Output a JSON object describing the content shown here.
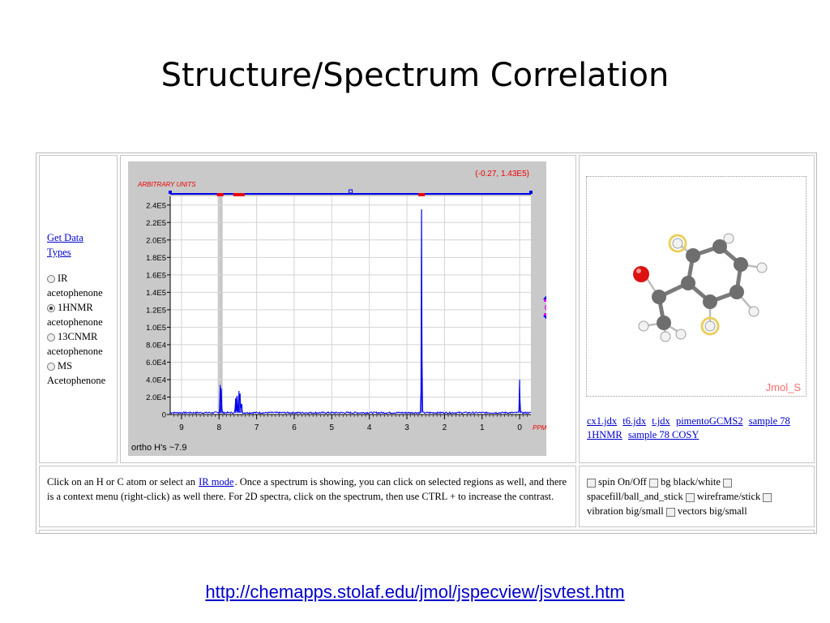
{
  "slide": {
    "title": "Structure/Spectrum Correlation",
    "url": "http://chemapps.stolaf.edu/jmol/jspecview/jsvtest.htm"
  },
  "left_panel": {
    "link_line1": "Get Data",
    "link_line2": "Types",
    "options": [
      {
        "name": "IR",
        "compound": "acetophenone",
        "checked": false
      },
      {
        "name": "1HNMR",
        "compound": "acetophenone",
        "checked": true
      },
      {
        "name": "13CNMR",
        "compound": "acetophenone",
        "checked": false
      },
      {
        "name": "MS",
        "compound": "Acetophenone",
        "checked": false
      }
    ]
  },
  "spectrum": {
    "cursor_readout": "(-0.27, 1.43E5)",
    "units_label": "ARBITRARY UNITS",
    "x_unit_label": "PPM",
    "annotation": "ortho H's ~7.9",
    "colors": {
      "background": "#c9c9c9",
      "line": "#0000ee",
      "readout": "#ee0000",
      "highlight": "#ee0000"
    }
  },
  "chart_data": {
    "type": "line",
    "ylabel": "ARBITRARY UNITS",
    "xlabel": "PPM",
    "xlim": [
      9.3,
      -0.3
    ],
    "ylim": [
      0,
      250000
    ],
    "x_ticks": [
      "9",
      "8",
      "7",
      "6",
      "5",
      "4",
      "3",
      "2",
      "1",
      "0"
    ],
    "y_ticks": [
      "0",
      "2.0E4",
      "4.0E4",
      "6.0E4",
      "8.0E4",
      "1.0E5",
      "1.2E5",
      "1.4E5",
      "1.6E5",
      "1.8E5",
      "2.0E5",
      "2.2E5",
      "2.4E5"
    ],
    "highlight_ppm": 7.97,
    "peaks": [
      {
        "ppm": 7.97,
        "height": 33000
      },
      {
        "ppm": 7.94,
        "height": 28000
      },
      {
        "ppm": 7.56,
        "height": 18000
      },
      {
        "ppm": 7.52,
        "height": 21000
      },
      {
        "ppm": 7.47,
        "height": 27000
      },
      {
        "ppm": 7.44,
        "height": 24000
      },
      {
        "ppm": 7.4,
        "height": 12000
      },
      {
        "ppm": 2.61,
        "height": 235000
      },
      {
        "ppm": 0.0,
        "height": 40000
      }
    ],
    "integration_marks_ppm": [
      7.97,
      7.47,
      2.61
    ]
  },
  "jmol": {
    "label": "Jmol_S",
    "file_links": [
      "cx1.jdx",
      "t6.jdx",
      "t.jdx",
      "pimentoGCMS2",
      "sample 78 1HNMR",
      "sample 78 COSY"
    ]
  },
  "help": {
    "text_before": "Click on an H or C atom or select an",
    "link": "IR mode",
    "text_after": ". Once a spectrum is showing, you can click on selected regions as well, and there is a context menu (right-click) as well there. For 2D spectra, click on the spectrum, then use CTRL + to increase the contrast."
  },
  "options": {
    "checkboxes": [
      "spin On/Off",
      "bg black/white",
      "spacefill/ball_and_stick",
      "wireframe/stick",
      "vibration big/small",
      "vectors big/small"
    ]
  }
}
